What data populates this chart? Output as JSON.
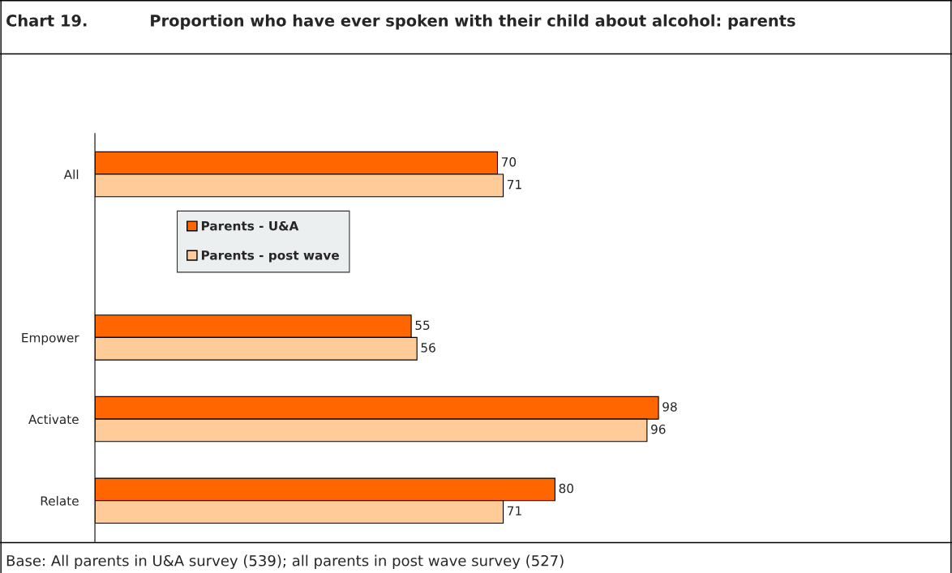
{
  "chart_data": {
    "type": "bar",
    "orientation": "horizontal",
    "title": "Chart 19.",
    "subtitle": "Proportion who have ever spoken with their child about alcohol: parents",
    "categories": [
      "All",
      null,
      "Empower",
      "Activate",
      "Relate"
    ],
    "series": [
      {
        "name": "Parents - U&A",
        "color": "#ff6600",
        "values": [
          70,
          null,
          55,
          98,
          80
        ]
      },
      {
        "name": "Parents - post wave",
        "color": "#ffcc99",
        "values": [
          71,
          null,
          56,
          96,
          71
        ]
      }
    ],
    "data_labels": true,
    "legend": "left",
    "grid": false,
    "annotations": [
      "Base: All parents in U&A survey (539); all parents in post wave survey (527)"
    ]
  }
}
